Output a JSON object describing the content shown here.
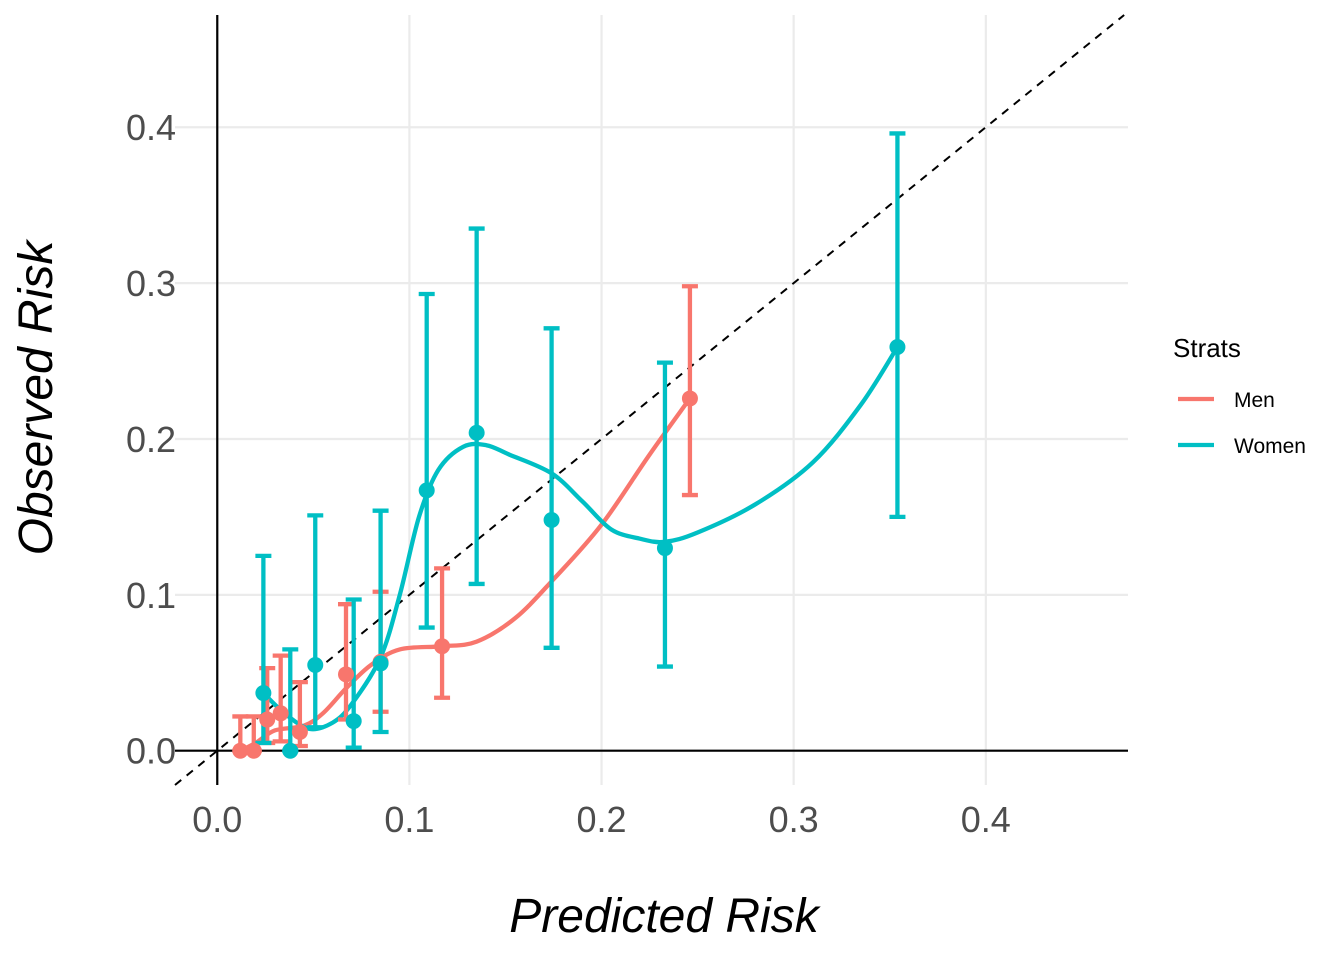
{
  "chart_data": {
    "type": "scatter",
    "xlabel": "Predicted Risk",
    "ylabel": "Observed Risk",
    "xlim": [
      -0.022,
      0.474
    ],
    "ylim": [
      -0.022,
      0.472
    ],
    "x_ticks": [
      0.0,
      0.1,
      0.2,
      0.3,
      0.4
    ],
    "y_ticks": [
      0.0,
      0.1,
      0.2,
      0.3,
      0.4
    ],
    "x_tick_labels": [
      "0.0",
      "0.1",
      "0.2",
      "0.3",
      "0.4"
    ],
    "y_tick_labels": [
      "0.0",
      "0.1",
      "0.2",
      "0.3",
      "0.4"
    ],
    "grid": true,
    "reference_line": "y = x (dashed)",
    "legend": {
      "title": "Strats",
      "position": "right"
    },
    "series": [
      {
        "name": "Men",
        "color": "#F8766D",
        "points": [
          {
            "x": 0.012,
            "y": 0.0,
            "lower": 0.0,
            "upper": 0.022
          },
          {
            "x": 0.019,
            "y": 0.0,
            "lower": 0.0,
            "upper": 0.022
          },
          {
            "x": 0.026,
            "y": 0.02,
            "lower": 0.005,
            "upper": 0.053
          },
          {
            "x": 0.033,
            "y": 0.024,
            "lower": 0.006,
            "upper": 0.061
          },
          {
            "x": 0.043,
            "y": 0.012,
            "lower": 0.003,
            "upper": 0.044
          },
          {
            "x": 0.067,
            "y": 0.049,
            "lower": 0.02,
            "upper": 0.094
          },
          {
            "x": 0.085,
            "y": 0.057,
            "lower": 0.025,
            "upper": 0.102
          },
          {
            "x": 0.117,
            "y": 0.067,
            "lower": 0.034,
            "upper": 0.117
          },
          {
            "x": 0.246,
            "y": 0.226,
            "lower": 0.164,
            "upper": 0.298
          }
        ],
        "smooth": [
          [
            0.012,
            0.0
          ],
          [
            0.02,
            0.005
          ],
          [
            0.03,
            0.013
          ],
          [
            0.045,
            0.016
          ],
          [
            0.055,
            0.024
          ],
          [
            0.067,
            0.04
          ],
          [
            0.08,
            0.055
          ],
          [
            0.095,
            0.065
          ],
          [
            0.117,
            0.067
          ],
          [
            0.135,
            0.07
          ],
          [
            0.155,
            0.085
          ],
          [
            0.175,
            0.11
          ],
          [
            0.2,
            0.145
          ],
          [
            0.225,
            0.19
          ],
          [
            0.246,
            0.226
          ]
        ]
      },
      {
        "name": "Women",
        "color": "#00BFC4",
        "points": [
          {
            "x": 0.024,
            "y": 0.037,
            "lower": 0.005,
            "upper": 0.125
          },
          {
            "x": 0.038,
            "y": 0.0,
            "lower": 0.0,
            "upper": 0.065
          },
          {
            "x": 0.051,
            "y": 0.055,
            "lower": 0.015,
            "upper": 0.151
          },
          {
            "x": 0.071,
            "y": 0.019,
            "lower": 0.002,
            "upper": 0.097
          },
          {
            "x": 0.085,
            "y": 0.056,
            "lower": 0.012,
            "upper": 0.154
          },
          {
            "x": 0.109,
            "y": 0.167,
            "lower": 0.079,
            "upper": 0.293
          },
          {
            "x": 0.135,
            "y": 0.204,
            "lower": 0.107,
            "upper": 0.335
          },
          {
            "x": 0.174,
            "y": 0.148,
            "lower": 0.066,
            "upper": 0.271
          },
          {
            "x": 0.233,
            "y": 0.13,
            "lower": 0.054,
            "upper": 0.249
          },
          {
            "x": 0.354,
            "y": 0.259,
            "lower": 0.15,
            "upper": 0.396
          }
        ],
        "smooth": [
          [
            0.024,
            0.037
          ],
          [
            0.035,
            0.024
          ],
          [
            0.048,
            0.014
          ],
          [
            0.06,
            0.018
          ],
          [
            0.07,
            0.03
          ],
          [
            0.085,
            0.06
          ],
          [
            0.095,
            0.1
          ],
          [
            0.105,
            0.15
          ],
          [
            0.115,
            0.18
          ],
          [
            0.128,
            0.195
          ],
          [
            0.14,
            0.196
          ],
          [
            0.152,
            0.19
          ],
          [
            0.174,
            0.178
          ],
          [
            0.19,
            0.16
          ],
          [
            0.205,
            0.142
          ],
          [
            0.22,
            0.136
          ],
          [
            0.233,
            0.134
          ],
          [
            0.25,
            0.14
          ],
          [
            0.28,
            0.158
          ],
          [
            0.31,
            0.185
          ],
          [
            0.335,
            0.222
          ],
          [
            0.354,
            0.259
          ]
        ]
      }
    ]
  }
}
